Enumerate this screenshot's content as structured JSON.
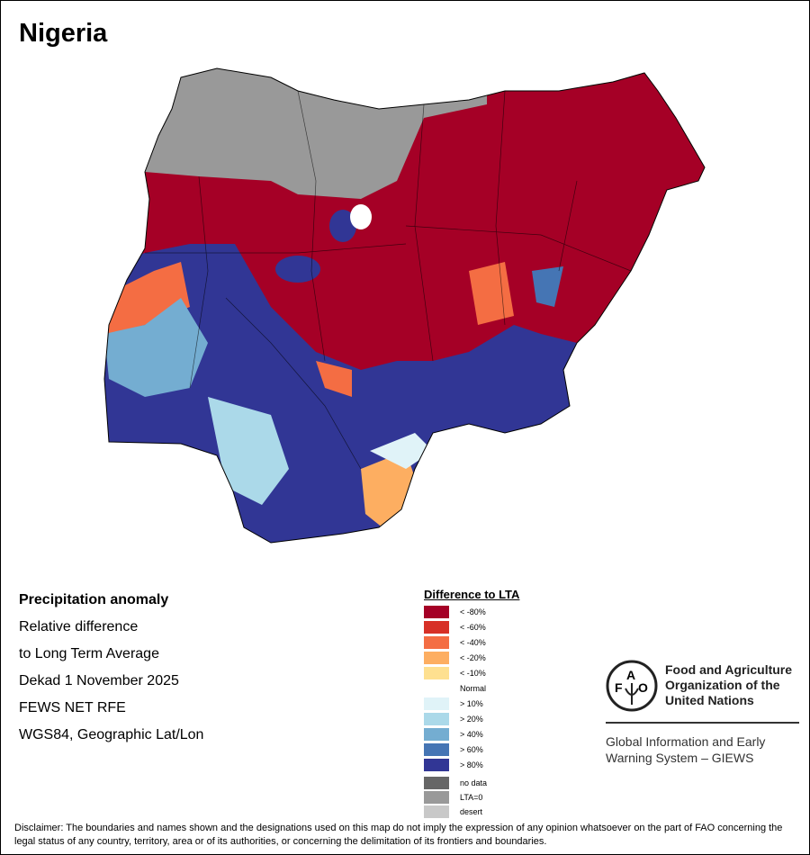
{
  "title": "Nigeria",
  "info": [
    "Precipitation anomaly",
    "Relative difference",
    "to Long Term Average",
    "Dekad 1 November 2025",
    "FEWS NET RFE",
    "WGS84, Geographic Lat/Lon"
  ],
  "legend": {
    "title": "Difference to LTA",
    "items": [
      {
        "label": "< -80%",
        "color": "#a50026"
      },
      {
        "label": "< -60%",
        "color": "#d73027"
      },
      {
        "label": "< -40%",
        "color": "#f46d43"
      },
      {
        "label": "< -20%",
        "color": "#fdae61"
      },
      {
        "label": "< -10%",
        "color": "#fee090"
      },
      {
        "label": "Normal",
        "color": "#ffffff"
      },
      {
        "label": "> 10%",
        "color": "#e0f3f8"
      },
      {
        "label": "> 20%",
        "color": "#abd9e9"
      },
      {
        "label": "> 40%",
        "color": "#74add1"
      },
      {
        "label": "> 60%",
        "color": "#4575b4"
      },
      {
        "label": "> 80%",
        "color": "#313695"
      },
      {
        "label": "no data",
        "color": "#666666"
      },
      {
        "label": "LTA=0",
        "color": "#999999"
      },
      {
        "label": "desert",
        "color": "#c8c8c8"
      }
    ]
  },
  "logo": {
    "org_name": "Food and Agriculture Organization of the United Nations",
    "org_lines": [
      "Food and Agriculture",
      "Organization of the",
      "United Nations"
    ],
    "giews_lines": [
      "Global Information and Early",
      "Warning System – GIEWS"
    ],
    "seal_text": "FAO FIAT PANIS"
  },
  "disclaimer": "Disclaimer: The boundaries and names shown and the designations used on this map do not imply the expression of any opinion whatsoever on the part of FAO concerning the legal status of any country, territory, area or of its authorities, or concerning the delimitation of its frontiers and boundaries."
}
